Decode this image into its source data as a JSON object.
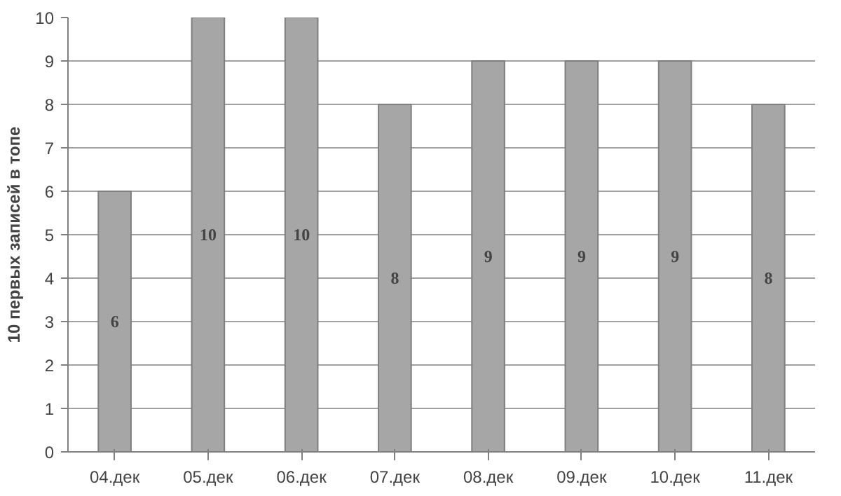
{
  "chart_data": {
    "type": "bar",
    "ylabel": "10 первых записей в топе",
    "categories": [
      "04.дек",
      "05.дек",
      "06.дек",
      "07.дек",
      "08.дек",
      "09.дек",
      "10.дек",
      "11.дек"
    ],
    "values": [
      6,
      10,
      10,
      8,
      9,
      9,
      9,
      8
    ],
    "color": "#a6a6a6",
    "ylim": [
      0,
      10
    ],
    "yticks": [
      0,
      1,
      2,
      3,
      4,
      5,
      6,
      7,
      8,
      9,
      10
    ],
    "grid": "y",
    "data_labels": true
  }
}
